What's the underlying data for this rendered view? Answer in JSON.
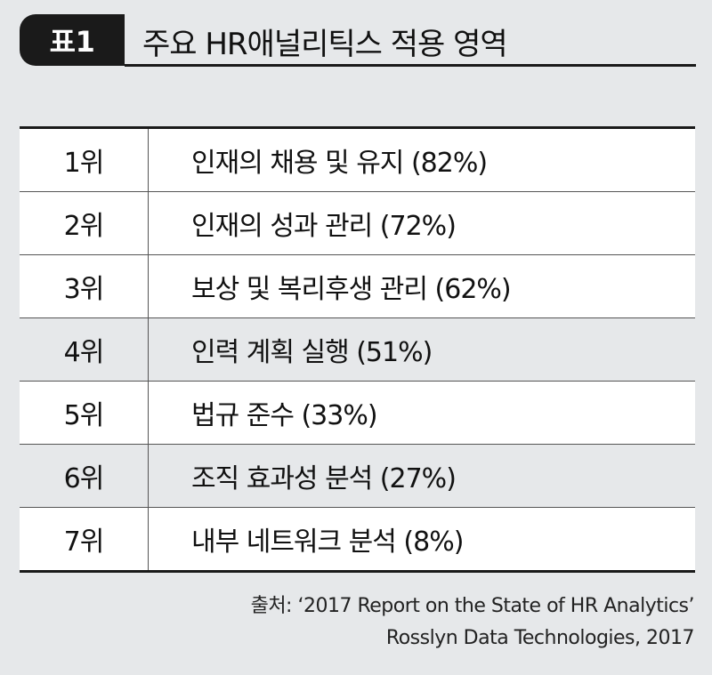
{
  "header": {
    "badge": "표1",
    "title": "주요 HR애널리틱스 적용 영역"
  },
  "table": {
    "rows": [
      {
        "rank": "1위",
        "area": "인재의 채용 및 유지 (82%)",
        "shaded": false
      },
      {
        "rank": "2위",
        "area": "인재의 성과 관리 (72%)",
        "shaded": false
      },
      {
        "rank": "3위",
        "area": "보상 및 복리후생 관리 (62%)",
        "shaded": false
      },
      {
        "rank": "4위",
        "area": "인력 계획 실행 (51%)",
        "shaded": true
      },
      {
        "rank": "5위",
        "area": "법규 준수 (33%)",
        "shaded": false
      },
      {
        "rank": "6위",
        "area": "조직 효과성 분석 (27%)",
        "shaded": true
      },
      {
        "rank": "7위",
        "area": "내부 네트워크 분석 (8%)",
        "shaded": false
      }
    ]
  },
  "source": {
    "line1": "출처: ‘2017 Report on the State of HR Analytics’",
    "line2": "Rosslyn Data Technologies, 2017"
  }
}
